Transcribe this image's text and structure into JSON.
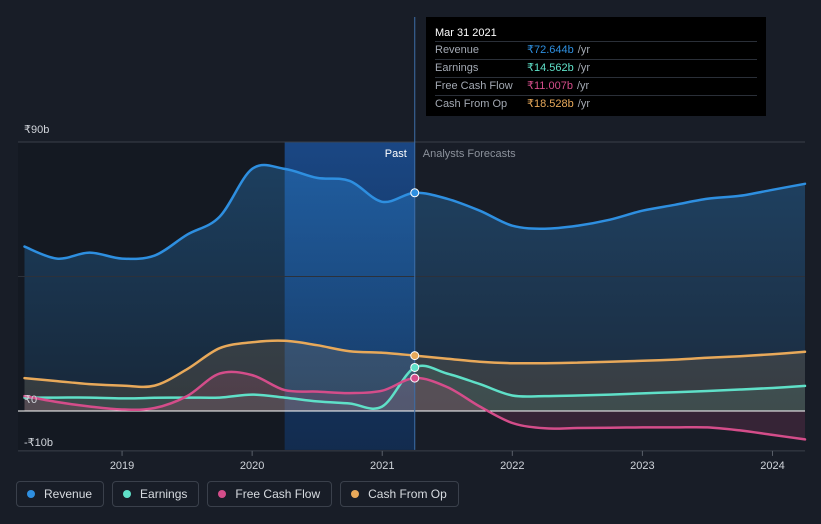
{
  "chart_data": {
    "type": "line",
    "currency_symbol": "₹",
    "y_axis": {
      "labels": [
        "₹90b",
        "₹0",
        "-₹10b"
      ],
      "ylim": [
        -10,
        90
      ]
    },
    "x_axis": {
      "ticks": [
        "2019",
        "2020",
        "2021",
        "2022",
        "2023",
        "2024"
      ],
      "xlim": [
        2018.2,
        2024.25
      ]
    },
    "regions": {
      "past_label": "Past",
      "forecast_label": "Analysts Forecasts",
      "divider_x": 2021.25,
      "highlight_start": 2020.25
    },
    "series": [
      {
        "name": "Revenue",
        "color": "#2e8fe0",
        "x": [
          2018.25,
          2018.5,
          2018.75,
          2019.0,
          2019.25,
          2019.5,
          2019.75,
          2020.0,
          2020.25,
          2020.5,
          2020.75,
          2021.0,
          2021.25,
          2021.5,
          2021.75,
          2022.0,
          2022.25,
          2022.5,
          2022.75,
          2023.0,
          2023.25,
          2023.5,
          2023.75,
          2024.0,
          2024.25
        ],
        "values": [
          55,
          51,
          53,
          51,
          52,
          59,
          65,
          81,
          81,
          78,
          77,
          70,
          73,
          71,
          67,
          62,
          61,
          62,
          64,
          67,
          69,
          71,
          72,
          74,
          76
        ]
      },
      {
        "name": "Earnings",
        "color": "#5fe0c8",
        "x": [
          2018.25,
          2018.5,
          2018.75,
          2019.0,
          2019.25,
          2019.5,
          2019.75,
          2020.0,
          2020.25,
          2020.5,
          2020.75,
          2021.0,
          2021.25,
          2021.5,
          2021.75,
          2022.0,
          2022.25,
          2022.5,
          2022.75,
          2023.0,
          2023.25,
          2023.5,
          2023.75,
          2024.0,
          2024.25
        ],
        "values": [
          4.5,
          4.5,
          4.5,
          4.2,
          4.4,
          4.5,
          4.5,
          5.5,
          4.5,
          3.2,
          2.5,
          1.5,
          14.562,
          12.5,
          9.0,
          5.2,
          5.0,
          5.2,
          5.5,
          5.9,
          6.3,
          6.7,
          7.2,
          7.7,
          8.4
        ]
      },
      {
        "name": "Free Cash Flow",
        "color": "#d44d8a",
        "x": [
          2018.25,
          2018.5,
          2018.75,
          2019.0,
          2019.25,
          2019.5,
          2019.75,
          2020.0,
          2020.25,
          2020.5,
          2020.75,
          2021.0,
          2021.25,
          2021.5,
          2021.75,
          2022.0,
          2022.25,
          2022.5,
          2022.75,
          2023.0,
          2023.25,
          2023.5,
          2023.75,
          2024.0,
          2024.25
        ],
        "values": [
          5.0,
          3.0,
          1.5,
          0.5,
          1.0,
          5.0,
          12.5,
          12.0,
          7.0,
          6.5,
          6.0,
          6.8,
          11.007,
          8.0,
          1.5,
          -4.0,
          -5.8,
          -5.7,
          -5.6,
          -5.5,
          -5.5,
          -5.5,
          -6.5,
          -8.0,
          -9.5
        ]
      },
      {
        "name": "Cash From Op",
        "color": "#e8a95a",
        "x": [
          2018.25,
          2018.5,
          2018.75,
          2019.0,
          2019.25,
          2019.5,
          2019.75,
          2020.0,
          2020.25,
          2020.5,
          2020.75,
          2021.0,
          2021.25,
          2021.5,
          2021.75,
          2022.0,
          2022.25,
          2022.5,
          2022.75,
          2023.0,
          2023.25,
          2023.5,
          2023.75,
          2024.0,
          2024.25
        ],
        "values": [
          11.0,
          10.0,
          9.0,
          8.5,
          8.5,
          14.0,
          21.0,
          23.0,
          23.5,
          22.0,
          20.0,
          19.5,
          18.528,
          17.5,
          16.5,
          16.0,
          16.0,
          16.2,
          16.5,
          16.8,
          17.2,
          17.8,
          18.3,
          19.0,
          19.8
        ]
      }
    ]
  },
  "tooltip": {
    "date": "Mar 31 2021",
    "rows": [
      {
        "label": "Revenue",
        "value": "₹72.644b",
        "unit": "/yr",
        "color": "#2e8fe0"
      },
      {
        "label": "Earnings",
        "value": "₹14.562b",
        "unit": "/yr",
        "color": "#5fe0c8"
      },
      {
        "label": "Free Cash Flow",
        "value": "₹11.007b",
        "unit": "/yr",
        "color": "#d44d8a"
      },
      {
        "label": "Cash From Op",
        "value": "₹18.528b",
        "unit": "/yr",
        "color": "#e8a95a"
      }
    ]
  },
  "legend": [
    {
      "label": "Revenue",
      "color": "#2e8fe0"
    },
    {
      "label": "Earnings",
      "color": "#5fe0c8"
    },
    {
      "label": "Free Cash Flow",
      "color": "#d44d8a"
    },
    {
      "label": "Cash From Op",
      "color": "#e8a95a"
    }
  ]
}
